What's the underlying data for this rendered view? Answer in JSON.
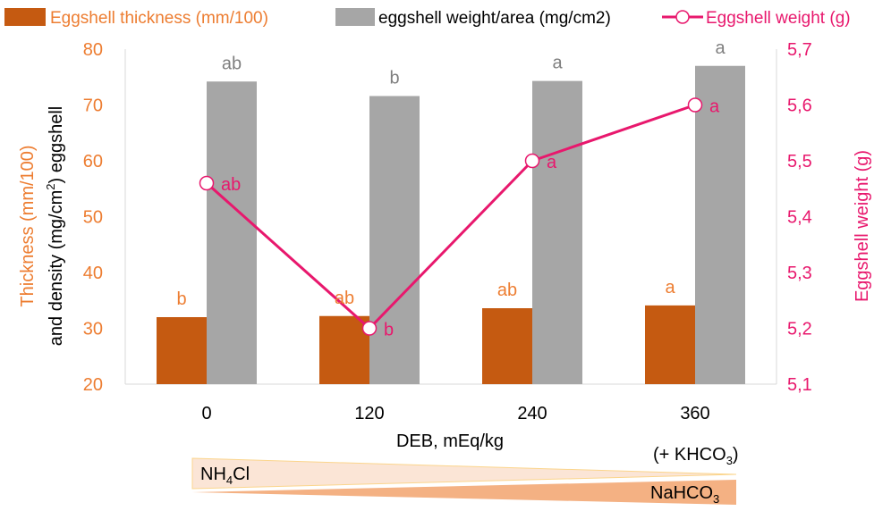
{
  "chart_data": {
    "type": "bar",
    "title": "",
    "categories": [
      "0",
      "120",
      "240",
      "360"
    ],
    "xlabel": "DEB, mEq/kg",
    "ylabel_left": {
      "part1": "Thickness (mm/100)",
      "part2a": "and density (mg/cm",
      "part2sup": "2",
      "part2b": ") eggshell"
    },
    "ylabel_right": "Eggshell weight (g)",
    "ylim_left": [
      20,
      80
    ],
    "yticks_left": [
      "20",
      "30",
      "40",
      "50",
      "60",
      "70",
      "80"
    ],
    "ylim_right": [
      5.1,
      5.7
    ],
    "yticks_right": [
      "5,1",
      "5,2",
      "5,3",
      "5,4",
      "5,5",
      "5,6",
      "5,7"
    ],
    "grid": false,
    "legend_position": "top",
    "series": [
      {
        "name": "Eggshell thickness (mm/100)",
        "kind": "bar",
        "axis": "left",
        "color": "#C55A11",
        "values": [
          32,
          32.2,
          33.6,
          34.1
        ],
        "labels": [
          "b",
          "ab",
          "ab",
          "a"
        ],
        "label_color": "#ED7D31"
      },
      {
        "name": "eggshell weight/area (mg/cm2)",
        "kind": "bar",
        "axis": "left",
        "color": "#A6A6A6",
        "values": [
          74.2,
          71.6,
          74.3,
          77.0
        ],
        "labels": [
          "ab",
          "b",
          "a",
          "a"
        ],
        "label_color": "#7F7F7F"
      },
      {
        "name": "Eggshell weight (g)",
        "kind": "line",
        "axis": "right",
        "color": "#E8186D",
        "values": [
          5.46,
          5.2,
          5.5,
          5.6
        ],
        "labels": [
          "ab",
          "b",
          "a",
          "a"
        ],
        "label_color": "#E8186D"
      }
    ],
    "annotations": {
      "nh4cl_main": "NH",
      "nh4cl_sub": "4",
      "nh4cl_tail": "Cl",
      "khco3_pre": "(+ KHCO",
      "khco3_sub": "3",
      "khco3_tail": ")",
      "nahco3_main": "NaHCO",
      "nahco3_sub": "3"
    },
    "colors": {
      "left_axis_text": "#ED7D31",
      "right_axis_text": "#E8186D",
      "wedge_light": "#FBE5D6",
      "wedge_dark": "#F4B183",
      "wedge_light_edge": "#FBD58C"
    }
  }
}
